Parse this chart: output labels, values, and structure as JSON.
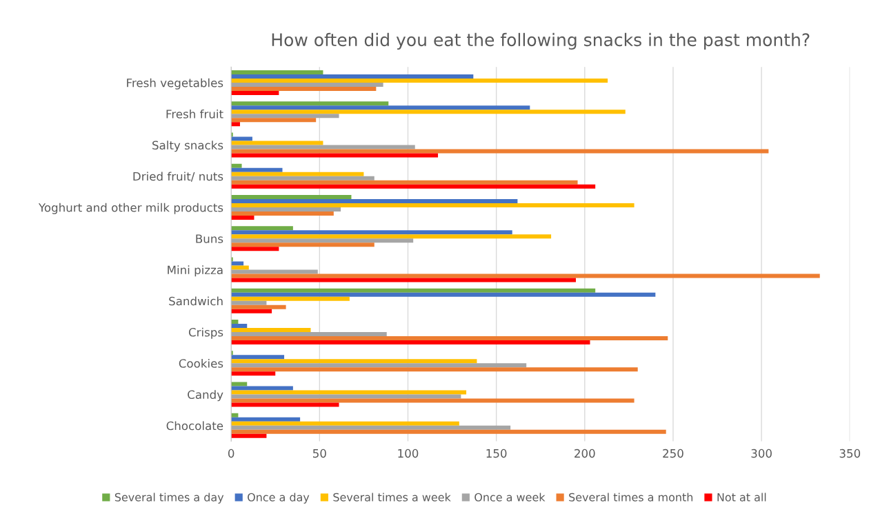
{
  "chart_data": {
    "type": "bar",
    "orientation": "horizontal",
    "title": "How often did you eat the following snacks in the past month?",
    "categories": [
      "Fresh vegetables",
      "Fresh fruit",
      "Salty snacks",
      "Dried fruit/ nuts",
      "Yoghurt and other milk products",
      "Buns",
      "Mini pizza",
      "Sandwich",
      "Crisps",
      "Cookies",
      "Candy",
      "Chocolate"
    ],
    "series": [
      {
        "name": "Several times a day",
        "color": "#70ad47",
        "values": [
          52,
          89,
          1,
          6,
          68,
          35,
          1,
          206,
          4,
          1,
          9,
          4
        ]
      },
      {
        "name": "Once a day",
        "color": "#4472c4",
        "values": [
          137,
          169,
          12,
          29,
          162,
          159,
          7,
          240,
          9,
          30,
          35,
          39
        ]
      },
      {
        "name": "Several times a week",
        "color": "#ffc000",
        "values": [
          213,
          223,
          52,
          75,
          228,
          181,
          10,
          67,
          45,
          139,
          133,
          129
        ]
      },
      {
        "name": "Once a week",
        "color": "#a5a5a5",
        "values": [
          86,
          61,
          104,
          81,
          62,
          103,
          49,
          20,
          88,
          167,
          130,
          158
        ]
      },
      {
        "name": "Several times a month",
        "color": "#ed7d31",
        "values": [
          82,
          48,
          304,
          196,
          58,
          81,
          333,
          31,
          247,
          230,
          228,
          246
        ]
      },
      {
        "name": "Not at all",
        "color": "#ff0000",
        "values": [
          27,
          5,
          117,
          206,
          13,
          27,
          195,
          23,
          203,
          25,
          61,
          20
        ]
      }
    ],
    "xlim": [
      0,
      350
    ],
    "xticks": [
      0,
      50,
      100,
      150,
      200,
      250,
      300,
      350
    ],
    "grid": "x",
    "legend": "bottom"
  }
}
